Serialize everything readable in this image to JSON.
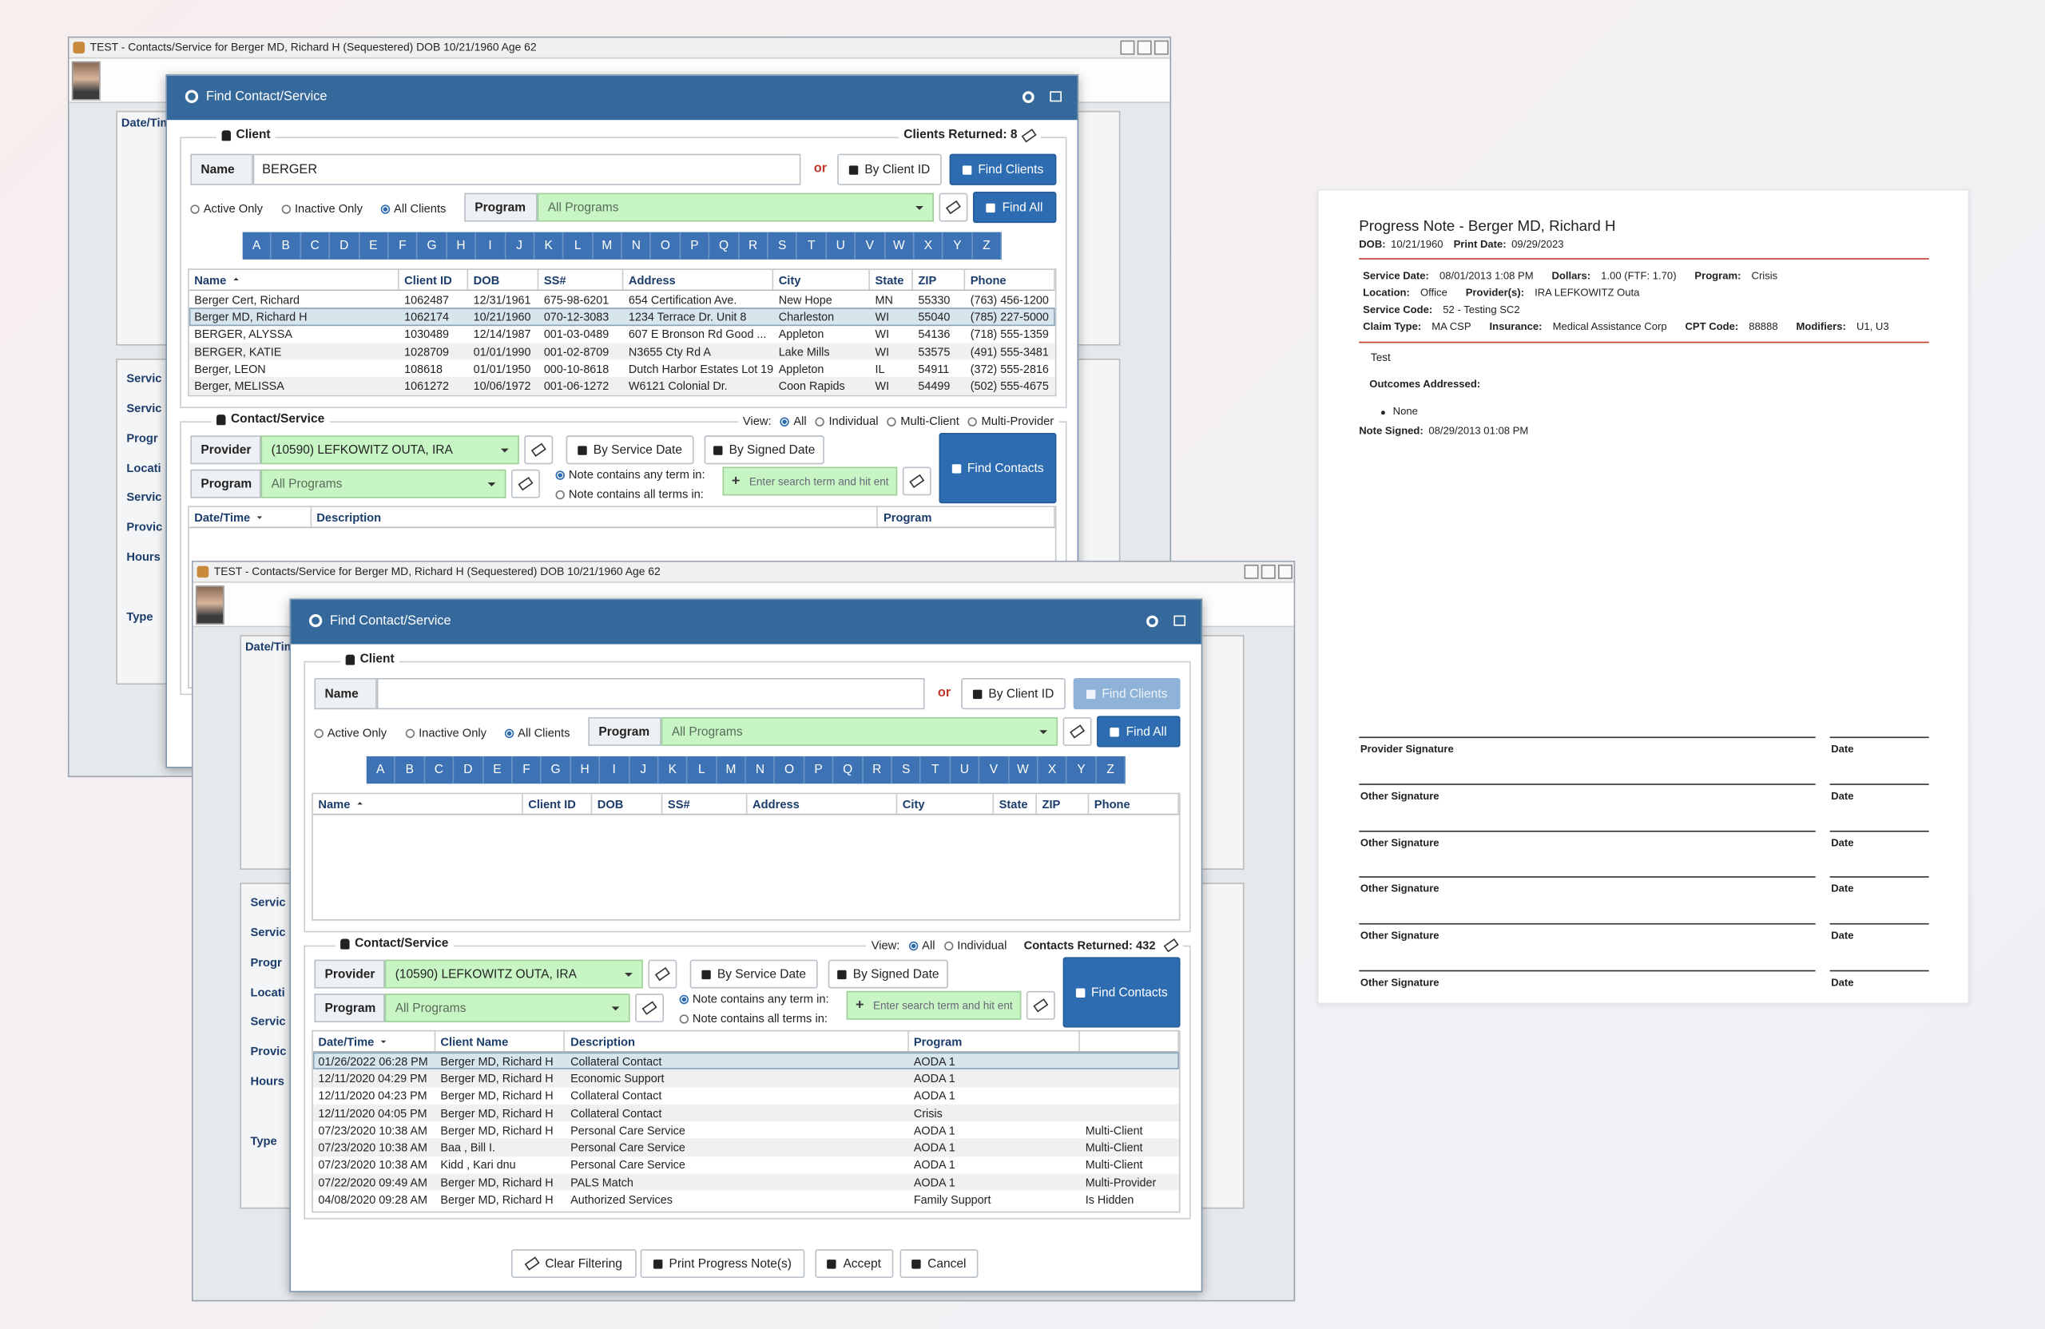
{
  "back_window": {
    "title": "TEST - Contacts/Service for Berger MD, Richard H (Sequestered) DOB 10/21/1960 Age 62",
    "side_header": "Date/Tim",
    "side_labels": [
      "Servic",
      "Servic",
      "Progr",
      "Locati",
      "Servic",
      "Provic",
      "Hours",
      "Type"
    ],
    "dialog_title": "Find Contact/Service",
    "client_section": "Client",
    "clients_returned": "Clients Returned: 8",
    "name_label": "Name",
    "name_value": "BERGER",
    "or": "or",
    "by_client_id": "By Client ID",
    "find_clients": "Find Clients",
    "find_clients_enabled": true,
    "filters": [
      "Active Only",
      "Inactive Only",
      "All Clients"
    ],
    "filter_selected": 2,
    "program_label": "Program",
    "program_value": "All Programs",
    "find_all": "Find All",
    "letters": [
      "A",
      "B",
      "C",
      "D",
      "E",
      "F",
      "G",
      "H",
      "I",
      "J",
      "K",
      "L",
      "M",
      "N",
      "O",
      "P",
      "Q",
      "R",
      "S",
      "T",
      "U",
      "V",
      "W",
      "X",
      "Y",
      "Z"
    ],
    "client_columns": [
      "Name",
      "Client ID",
      "DOB",
      "SS#",
      "Address",
      "City",
      "State",
      "ZIP",
      "Phone"
    ],
    "client_rows": [
      [
        "Berger Cert, Richard",
        "1062487",
        "12/31/1961",
        "675-98-6201",
        "654 Certification Ave.",
        "New Hope",
        "MN",
        "55330",
        "(763) 456-1200"
      ],
      [
        "Berger MD, Richard H",
        "1062174",
        "10/21/1960",
        "070-12-3083",
        "1234 Terrace Dr. Unit 8",
        "Charleston",
        "WI",
        "55040",
        "(785) 227-5000"
      ],
      [
        "BERGER, ALYSSA",
        "1030489",
        "12/14/1987",
        "001-03-0489",
        "607 E Bronson Rd Good ...",
        "Appleton",
        "WI",
        "54136",
        "(718) 555-1359"
      ],
      [
        "BERGER, KATIE",
        "1028709",
        "01/01/1990",
        "001-02-8709",
        "N3655 Cty Rd A",
        "Lake Mills",
        "WI",
        "53575",
        "(491) 555-3481"
      ],
      [
        "Berger, LEON",
        "108618",
        "01/01/1950",
        "000-10-8618",
        "Dutch Harbor Estates Lot 19",
        "Appleton",
        "IL",
        "54911",
        "(372) 555-2816"
      ],
      [
        "Berger, MELISSA",
        "1061272",
        "10/06/1972",
        "001-06-1272",
        "W6121 Colonial Dr.",
        "Coon Rapids",
        "WI",
        "54499",
        "(502) 555-4675"
      ]
    ],
    "selected_client_row": 1,
    "contact_section": "Contact/Service",
    "view_label": "View:",
    "view_options": [
      "All",
      "Individual",
      "Multi-Client",
      "Multi-Provider"
    ],
    "view_selected": 0,
    "provider_label": "Provider",
    "provider_value": "(10590)  LEFKOWITZ OUTA, IRA",
    "by_service_date": "By Service Date",
    "by_signed_date": "By Signed Date",
    "contact_program_label": "Program",
    "contact_program_value": "All Programs",
    "note_modes": [
      "Note contains any term in:",
      "Note contains all terms in:"
    ],
    "note_mode_selected": 0,
    "search_placeholder": "Enter search term and hit ent",
    "find_contacts": "Find Contacts",
    "contact_columns": [
      "Date/Time",
      "Description",
      "Program"
    ],
    "contact_rows": []
  },
  "front_window": {
    "title": "TEST - Contacts/Service for Berger MD, Richard H (Sequestered) DOB 10/21/1960 Age 62",
    "side_header": "Date/Tim",
    "side_labels": [
      "Servic",
      "Servic",
      "Progr",
      "Locati",
      "Servic",
      "Provic",
      "Hours",
      "Type"
    ],
    "dialog_title": "Find Contact/Service",
    "client_section": "Client",
    "name_label": "Name",
    "name_value": null,
    "or": "or",
    "by_client_id": "By Client ID",
    "find_clients": "Find Clients",
    "find_clients_enabled": false,
    "filters": [
      "Active Only",
      "Inactive Only",
      "All Clients"
    ],
    "filter_selected": 2,
    "program_label": "Program",
    "program_value": "All Programs",
    "find_all": "Find All",
    "letters": [
      "A",
      "B",
      "C",
      "D",
      "E",
      "F",
      "G",
      "H",
      "I",
      "J",
      "K",
      "L",
      "M",
      "N",
      "O",
      "P",
      "Q",
      "R",
      "S",
      "T",
      "U",
      "V",
      "W",
      "X",
      "Y",
      "Z"
    ],
    "client_columns": [
      "Name",
      "Client ID",
      "DOB",
      "SS#",
      "Address",
      "City",
      "State",
      "ZIP",
      "Phone"
    ],
    "client_rows": [],
    "contact_section": "Contact/Service",
    "view_label": "View:",
    "view_options": [
      "All",
      "Individual"
    ],
    "view_selected": 0,
    "contacts_returned": "Contacts Returned: 432",
    "provider_label": "Provider",
    "provider_value": "(10590)  LEFKOWITZ OUTA, IRA",
    "by_service_date": "By Service Date",
    "by_signed_date": "By Signed Date",
    "contact_program_label": "Program",
    "contact_program_value": "All Programs",
    "note_modes": [
      "Note contains any term in:",
      "Note contains all terms in:"
    ],
    "note_mode_selected": 0,
    "search_placeholder": "Enter search term and hit ent",
    "find_contacts": "Find Contacts",
    "contact_columns": [
      "Date/Time",
      "Client Name",
      "Description",
      "Program",
      null
    ],
    "contact_rows": [
      [
        "01/26/2022 06:28 PM",
        "Berger MD, Richard H",
        "Collateral Contact",
        "AODA 1",
        null
      ],
      [
        "12/11/2020 04:29 PM",
        "Berger MD, Richard H",
        "Economic Support",
        "AODA 1",
        null
      ],
      [
        "12/11/2020 04:23 PM",
        "Berger MD, Richard H",
        "Collateral Contact",
        "AODA 1",
        null
      ],
      [
        "12/11/2020 04:05 PM",
        "Berger MD, Richard H",
        "Collateral Contact",
        "Crisis",
        null
      ],
      [
        "07/23/2020 10:38 AM",
        "Berger MD, Richard H",
        "Personal Care Service",
        "AODA 1",
        "Multi-Client"
      ],
      [
        "07/23/2020 10:38 AM",
        "Baa , Bill I.",
        "Personal Care Service",
        "AODA 1",
        "Multi-Client"
      ],
      [
        "07/23/2020 10:38 AM",
        "Kidd , Kari dnu",
        "Personal Care Service",
        "AODA 1",
        "Multi-Client"
      ],
      [
        "07/22/2020 09:49 AM",
        "Berger MD, Richard H",
        "PALS Match",
        "AODA 1",
        "Multi-Provider"
      ],
      [
        "04/08/2020 09:28 AM",
        "Berger MD, Richard H",
        "Authorized Services",
        "Family Support",
        "Is Hidden"
      ]
    ],
    "selected_contact_row": 0,
    "footer_buttons": [
      "Clear Filtering",
      "Print Progress Note(s)",
      "Accept",
      "Cancel"
    ]
  },
  "progress_note": {
    "title": "Progress Note - Berger MD, Richard H",
    "dob_label": "DOB:",
    "dob": "10/21/1960",
    "print_date_label": "Print Date:",
    "print_date": "09/29/2023",
    "fields": [
      [
        [
          "Service Date:",
          "08/01/2013 1:08 PM"
        ],
        [
          "Dollars:",
          "1.00 (FTF: 1.70)"
        ],
        [
          "Program:",
          "Crisis"
        ]
      ],
      [
        [
          "Location:",
          "Office"
        ],
        [
          "Provider(s):",
          "IRA LEFKOWITZ Outa"
        ]
      ],
      [
        [
          "Service Code:",
          "52 - Testing SC2"
        ]
      ],
      [
        [
          "Claim Type:",
          "MA CSP"
        ],
        [
          "Insurance:",
          "Medical Assistance Corp"
        ],
        [
          "CPT Code:",
          "88888"
        ],
        [
          "Modifiers:",
          "U1, U3"
        ]
      ]
    ],
    "note_text": "Test",
    "outcomes_label": "Outcomes Addressed:",
    "outcomes": [
      "None"
    ],
    "note_signed_label": "Note Signed:",
    "note_signed": "08/29/2013 01:08 PM",
    "signatures": [
      "Provider Signature",
      "Other Signature",
      "Other Signature",
      "Other Signature",
      "Other Signature",
      "Other Signature"
    ],
    "date_label": "Date"
  }
}
